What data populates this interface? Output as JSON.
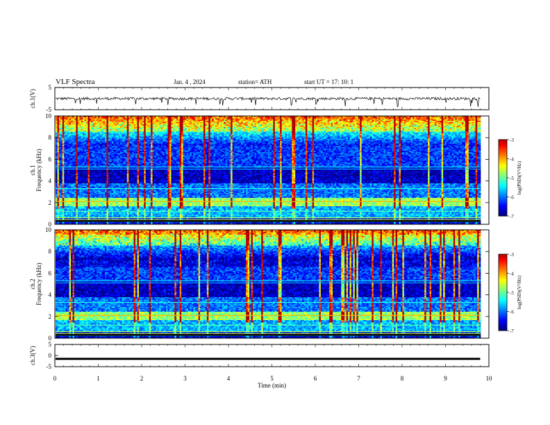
{
  "header": {
    "title": "VLF  Spectra",
    "date": "Jan. 4  , 2024",
    "station": "station= ATH",
    "start": "start  UT  =    17: 10: 1"
  },
  "chart_data": [
    {
      "type": "line",
      "panel": "ch1-waveform",
      "ylabel": "ch.1(V)",
      "ylim": [
        -5,
        5
      ],
      "yticks": [
        "5",
        "-5"
      ],
      "xlim": [
        0,
        10
      ],
      "baseline": 0,
      "amplitude_note": "noisy trace around 0 V with spikes to about -3"
    },
    {
      "type": "heatmap",
      "panel": "ch1-spectrogram",
      "ylabel": "ch.1\nFrequency (kHz)",
      "ylim": [
        0,
        10
      ],
      "yticks": [
        "0",
        "2",
        "4",
        "6",
        "8",
        "10"
      ],
      "xlim": [
        0,
        10
      ],
      "colorbar": {
        "label": "log(PSD)(V²/Hz)",
        "range": [
          -7,
          -3
        ],
        "ticks": [
          "-3",
          "-4",
          "-5",
          "-6",
          "-7"
        ]
      }
    },
    {
      "type": "heatmap",
      "panel": "ch2-spectrogram",
      "ylabel": "ch.2\nFrequency (kHz)",
      "ylim": [
        0,
        10
      ],
      "yticks": [
        "0",
        "2",
        "4",
        "6",
        "8",
        "10"
      ],
      "xlim": [
        0,
        10
      ],
      "colorbar": {
        "label": "log(PSD)(V²/Hz)",
        "range": [
          -7,
          -3
        ],
        "ticks": [
          "-3",
          "-4",
          "-5",
          "-6",
          "-7"
        ]
      }
    },
    {
      "type": "line",
      "panel": "ch3-waveform",
      "ylabel": "ch.3(V)",
      "ylim": [
        -5,
        5
      ],
      "yticks": [
        "5",
        "0",
        "-5"
      ],
      "xlim": [
        0,
        10
      ],
      "baseline": -1.5
    }
  ],
  "xaxis": {
    "label": "Time  (min)",
    "ticks": [
      "0",
      "1",
      "2",
      "3",
      "4",
      "5",
      "6",
      "7",
      "8",
      "9",
      "10"
    ]
  },
  "colors": {
    "low": "#00006e",
    "mid": "#00c8ff",
    "high": "#ff0000",
    "trace": "#000000"
  }
}
